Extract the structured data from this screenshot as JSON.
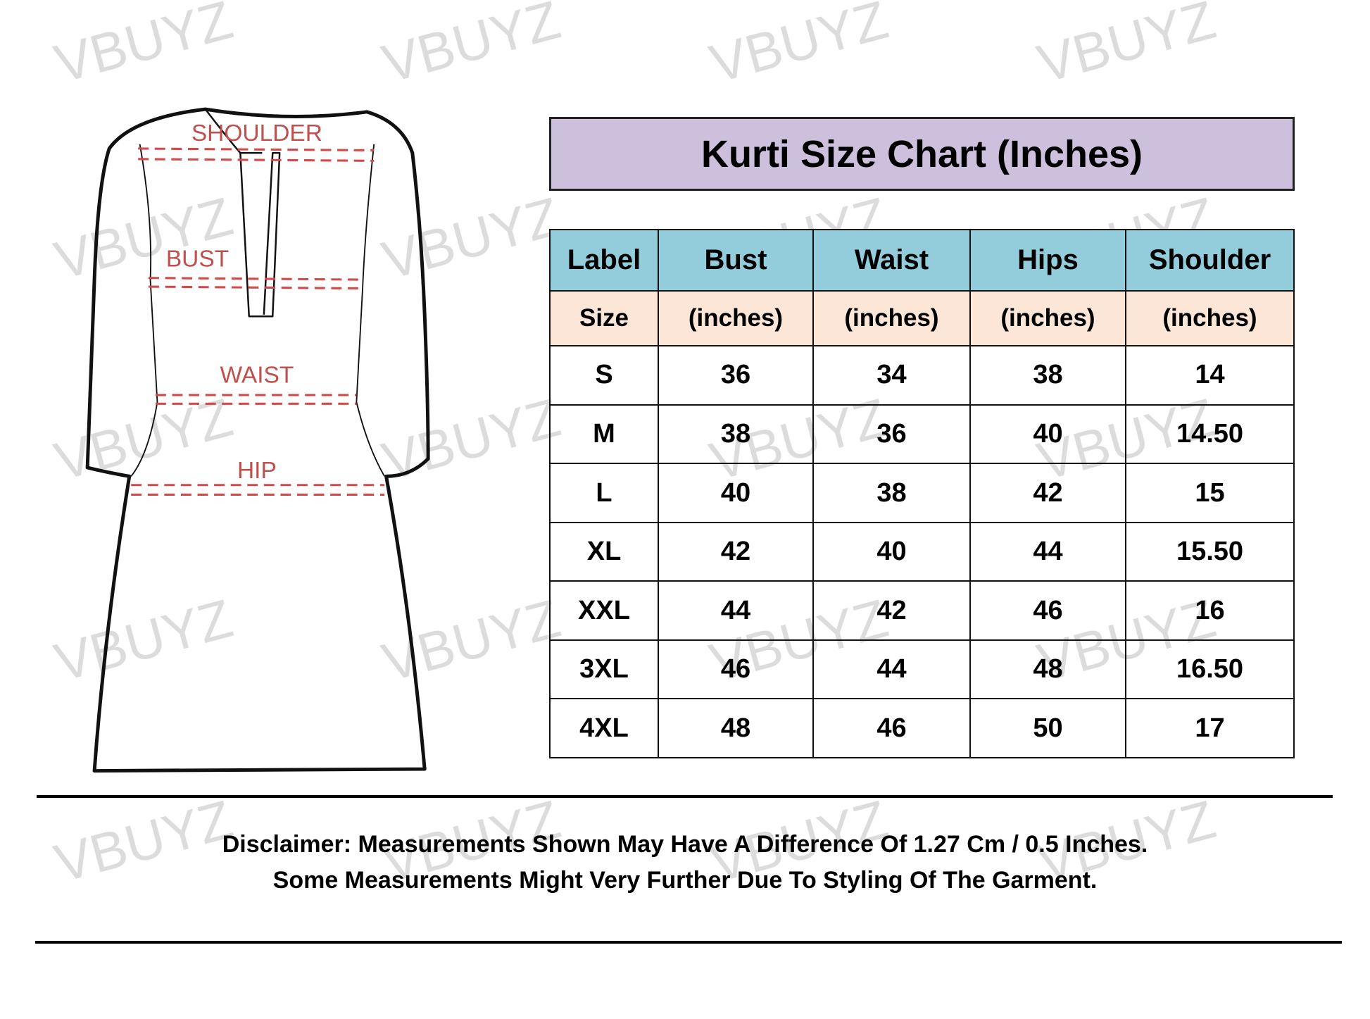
{
  "watermark": "VBUYZ",
  "diagram": {
    "labels": {
      "shoulder": "SHOULDER",
      "bust": "BUST",
      "waist": "WAIST",
      "hip": "HIP"
    },
    "label_color": "#c0504d"
  },
  "title": "Kurti Size Chart (Inches)",
  "colors": {
    "title_bg": "#cdc0dc",
    "header_bg": "#93ccdb",
    "subheader_bg": "#fbe6d8"
  },
  "table": {
    "headers": [
      "Label",
      "Bust",
      "Waist",
      "Hips",
      "Shoulder"
    ],
    "subheaders": [
      "Size",
      "(inches)",
      "(inches)",
      "(inches)",
      "(inches)"
    ],
    "rows": [
      [
        "S",
        "36",
        "34",
        "38",
        "14"
      ],
      [
        "M",
        "38",
        "36",
        "40",
        "14.50"
      ],
      [
        "L",
        "40",
        "38",
        "42",
        "15"
      ],
      [
        "XL",
        "42",
        "40",
        "44",
        "15.50"
      ],
      [
        "XXL",
        "44",
        "42",
        "46",
        "16"
      ],
      [
        "3XL",
        "46",
        "44",
        "48",
        "16.50"
      ],
      [
        "4XL",
        "48",
        "46",
        "50",
        "17"
      ]
    ]
  },
  "disclaimer": {
    "line1": "Disclaimer: Measurements Shown May Have A Difference Of 1.27 Cm / 0.5 Inches.",
    "line2": "Some Measurements Might Very Further Due To Styling Of The Garment."
  }
}
